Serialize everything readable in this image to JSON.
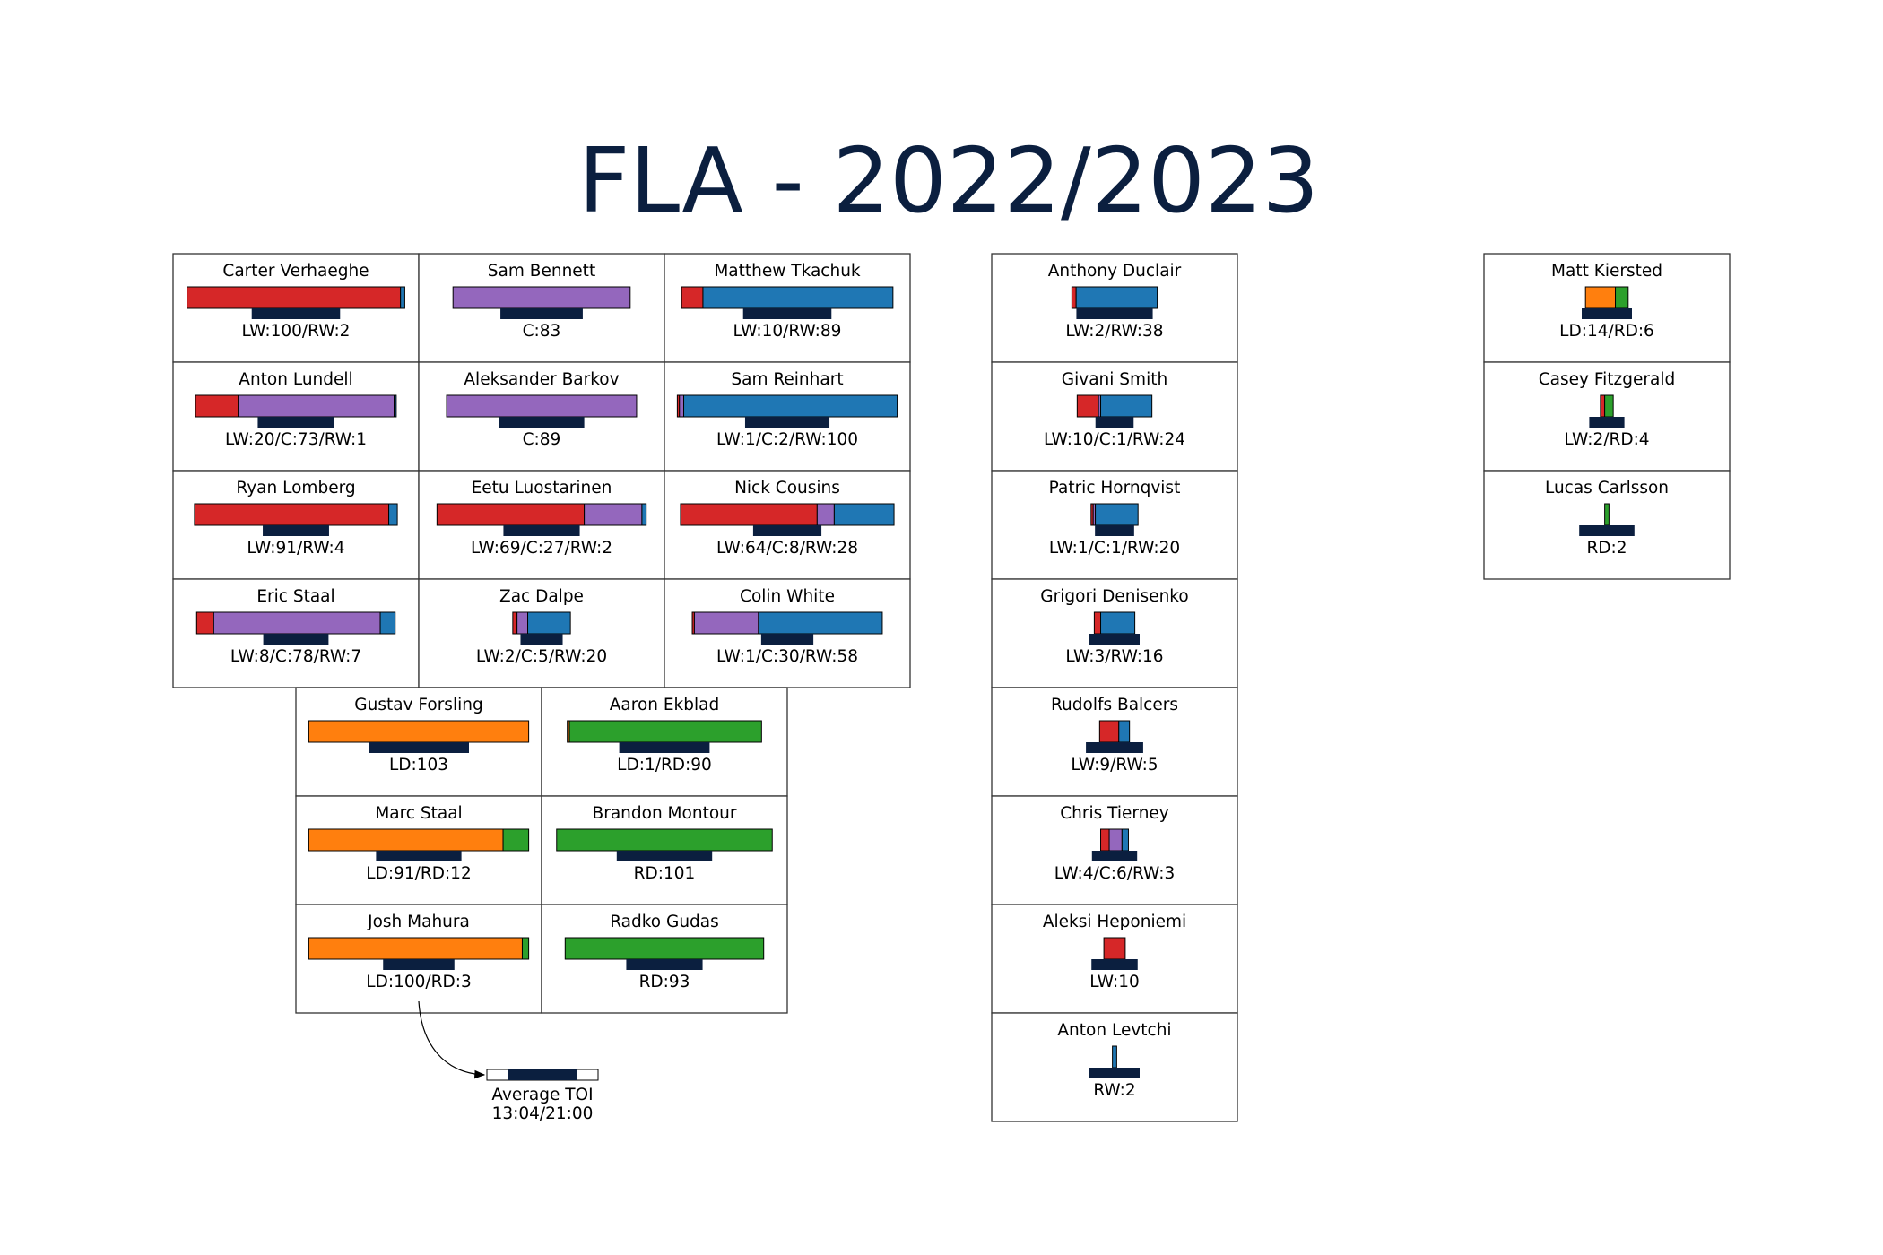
{
  "title": "FLA - 2022/2023",
  "colors": {
    "LW": "#d62728",
    "C": "#9467bd",
    "RW": "#1f77b4",
    "LD": "#ff7f0e",
    "RD": "#2ca02c",
    "toi": "#0b1f3f",
    "title": "#0b1f3f"
  },
  "legend": {
    "label": "Average TOI",
    "value": "13:04/21:00",
    "average_toi_fraction": 0.62
  },
  "chart_data": {
    "type": "bar",
    "title": "FLA - 2022/2023",
    "max_games": 105,
    "groups": [
      {
        "name": "forwards",
        "players": [
          {
            "name": "Carter Verhaeghe",
            "label": "LW:100/RW:2",
            "segments": [
              {
                "pos": "LW",
                "games": 100
              },
              {
                "pos": "RW",
                "games": 2
              }
            ],
            "toi_fraction": 0.88
          },
          {
            "name": "Sam Bennett",
            "label": "C:83",
            "segments": [
              {
                "pos": "C",
                "games": 83
              }
            ],
            "toi_fraction": 0.82
          },
          {
            "name": "Matthew Tkachuk",
            "label": "LW:10/RW:89",
            "segments": [
              {
                "pos": "LW",
                "games": 10
              },
              {
                "pos": "RW",
                "games": 89
              }
            ],
            "toi_fraction": 0.88
          },
          {
            "name": "Anton Lundell",
            "label": "LW:20/C:73/RW:1",
            "segments": [
              {
                "pos": "LW",
                "games": 20
              },
              {
                "pos": "C",
                "games": 73
              },
              {
                "pos": "RW",
                "games": 1
              }
            ],
            "toi_fraction": 0.76
          },
          {
            "name": "Aleksander Barkov",
            "label": "C:89",
            "segments": [
              {
                "pos": "C",
                "games": 89
              }
            ],
            "toi_fraction": 0.85
          },
          {
            "name": "Sam Reinhart",
            "label": "LW:1/C:2/RW:100",
            "segments": [
              {
                "pos": "LW",
                "games": 1
              },
              {
                "pos": "C",
                "games": 2
              },
              {
                "pos": "RW",
                "games": 100
              }
            ],
            "toi_fraction": 0.84
          },
          {
            "name": "Ryan Lomberg",
            "label": "LW:91/RW:4",
            "segments": [
              {
                "pos": "LW",
                "games": 91
              },
              {
                "pos": "RW",
                "games": 4
              }
            ],
            "toi_fraction": 0.66
          },
          {
            "name": "Eetu Luostarinen",
            "label": "LW:69/C:27/RW:2",
            "segments": [
              {
                "pos": "LW",
                "games": 69
              },
              {
                "pos": "C",
                "games": 27
              },
              {
                "pos": "RW",
                "games": 2
              }
            ],
            "toi_fraction": 0.76
          },
          {
            "name": "Nick Cousins",
            "label": "LW:64/C:8/RW:28",
            "segments": [
              {
                "pos": "LW",
                "games": 64
              },
              {
                "pos": "C",
                "games": 8
              },
              {
                "pos": "RW",
                "games": 28
              }
            ],
            "toi_fraction": 0.68
          },
          {
            "name": "Eric Staal",
            "label": "LW:8/C:78/RW:7",
            "segments": [
              {
                "pos": "LW",
                "games": 8
              },
              {
                "pos": "C",
                "games": 78
              },
              {
                "pos": "RW",
                "games": 7
              }
            ],
            "toi_fraction": 0.65
          },
          {
            "name": "Zac Dalpe",
            "label": "LW:2/C:5/RW:20",
            "segments": [
              {
                "pos": "LW",
                "games": 2
              },
              {
                "pos": "C",
                "games": 5
              },
              {
                "pos": "RW",
                "games": 20
              }
            ],
            "toi_fraction": 0.42
          },
          {
            "name": "Colin White",
            "label": "LW:1/C:30/RW:58",
            "segments": [
              {
                "pos": "LW",
                "games": 1
              },
              {
                "pos": "C",
                "games": 30
              },
              {
                "pos": "RW",
                "games": 58
              }
            ],
            "toi_fraction": 0.52
          }
        ]
      },
      {
        "name": "defense",
        "players": [
          {
            "name": "Gustav Forsling",
            "label": "LD:103",
            "segments": [
              {
                "pos": "LD",
                "games": 103
              }
            ],
            "toi_fraction": 1.0
          },
          {
            "name": "Aaron Ekblad",
            "label": "LD:1/RD:90",
            "segments": [
              {
                "pos": "LD",
                "games": 1
              },
              {
                "pos": "RD",
                "games": 90
              }
            ],
            "toi_fraction": 0.9
          },
          {
            "name": "Marc Staal",
            "label": "LD:91/RD:12",
            "segments": [
              {
                "pos": "LD",
                "games": 91
              },
              {
                "pos": "RD",
                "games": 12
              }
            ],
            "toi_fraction": 0.85
          },
          {
            "name": "Brandon Montour",
            "label": "RD:101",
            "segments": [
              {
                "pos": "RD",
                "games": 101
              }
            ],
            "toi_fraction": 0.95
          },
          {
            "name": "Josh Mahura",
            "label": "LD:100/RD:3",
            "segments": [
              {
                "pos": "LD",
                "games": 100
              },
              {
                "pos": "RD",
                "games": 3
              }
            ],
            "toi_fraction": 0.71
          },
          {
            "name": "Radko Gudas",
            "label": "RD:93",
            "segments": [
              {
                "pos": "RD",
                "games": 93
              }
            ],
            "toi_fraction": 0.76
          }
        ]
      },
      {
        "name": "extra-forwards",
        "players": [
          {
            "name": "Anthony Duclair",
            "label": "LW:2/RW:38",
            "segments": [
              {
                "pos": "LW",
                "games": 2
              },
              {
                "pos": "RW",
                "games": 38
              }
            ],
            "toi_fraction": 0.76
          },
          {
            "name": "Givani Smith",
            "label": "LW:10/C:1/RW:24",
            "segments": [
              {
                "pos": "LW",
                "games": 10
              },
              {
                "pos": "C",
                "games": 1
              },
              {
                "pos": "RW",
                "games": 24
              }
            ],
            "toi_fraction": 0.38
          },
          {
            "name": "Patric Hornqvist",
            "label": "LW:1/C:1/RW:20",
            "segments": [
              {
                "pos": "LW",
                "games": 1
              },
              {
                "pos": "C",
                "games": 1
              },
              {
                "pos": "RW",
                "games": 20
              }
            ],
            "toi_fraction": 0.39
          },
          {
            "name": "Grigori Denisenko",
            "label": "LW:3/RW:16",
            "segments": [
              {
                "pos": "LW",
                "games": 3
              },
              {
                "pos": "RW",
                "games": 16
              }
            ],
            "toi_fraction": 0.5
          },
          {
            "name": "Rudolfs Balcers",
            "label": "LW:9/RW:5",
            "segments": [
              {
                "pos": "LW",
                "games": 9
              },
              {
                "pos": "RW",
                "games": 5
              }
            ],
            "toi_fraction": 0.57
          },
          {
            "name": "Chris Tierney",
            "label": "LW:4/C:6/RW:3",
            "segments": [
              {
                "pos": "LW",
                "games": 4
              },
              {
                "pos": "C",
                "games": 6
              },
              {
                "pos": "RW",
                "games": 3
              }
            ],
            "toi_fraction": 0.45
          },
          {
            "name": "Aleksi Heponiemi",
            "label": "LW:10",
            "segments": [
              {
                "pos": "LW",
                "games": 10
              }
            ],
            "toi_fraction": 0.46
          },
          {
            "name": "Anton Levtchi",
            "label": "RW:2",
            "segments": [
              {
                "pos": "RW",
                "games": 2
              }
            ],
            "toi_fraction": 0.5
          }
        ]
      },
      {
        "name": "extra-defense",
        "players": [
          {
            "name": "Matt Kiersted",
            "label": "LD:14/RD:6",
            "segments": [
              {
                "pos": "LD",
                "games": 14
              },
              {
                "pos": "RD",
                "games": 6
              }
            ],
            "toi_fraction": 0.5
          },
          {
            "name": "Casey Fitzgerald",
            "label": "LW:2/RD:4",
            "segments": [
              {
                "pos": "LW",
                "games": 2
              },
              {
                "pos": "RD",
                "games": 4
              }
            ],
            "toi_fraction": 0.35
          },
          {
            "name": "Lucas Carlsson",
            "label": "RD:2",
            "segments": [
              {
                "pos": "RD",
                "games": 2
              }
            ],
            "toi_fraction": 0.55
          }
        ]
      }
    ]
  }
}
